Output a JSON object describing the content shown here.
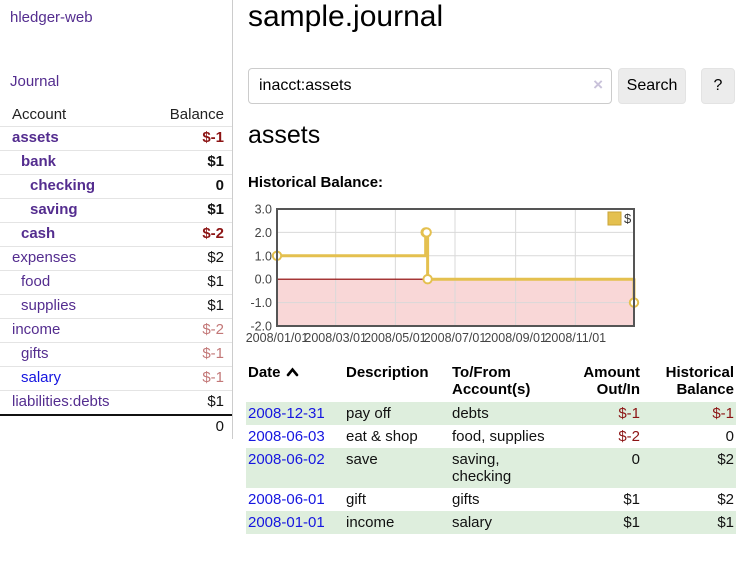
{
  "theme": {
    "purple": "#542d8f",
    "blue": "#1616e0",
    "negative": "#8c1414",
    "negative-faded": "#c37878",
    "row-green": "#deeedd",
    "button-bg": "#ececec"
  },
  "sidebar": {
    "brand": "hledger-web",
    "nav": "Journal",
    "account_header": "Account",
    "balance_header": "Balance",
    "accounts": [
      {
        "name": "assets",
        "depth": 1,
        "bold": true,
        "balance": "$-1",
        "balance_style": "neg",
        "link": "purple"
      },
      {
        "name": "bank",
        "depth": 2,
        "bold": true,
        "balance": "$1",
        "balance_style": "plain",
        "link": "purple"
      },
      {
        "name": "checking",
        "depth": 3,
        "bold": true,
        "balance": "0",
        "balance_style": "plain",
        "link": "purple"
      },
      {
        "name": "saving",
        "depth": 3,
        "bold": true,
        "balance": "$1",
        "balance_style": "plain",
        "link": "purple"
      },
      {
        "name": "cash",
        "depth": 2,
        "bold": true,
        "balance": "$-2",
        "balance_style": "neg",
        "link": "purple"
      },
      {
        "name": "expenses",
        "depth": 1,
        "bold": false,
        "balance": "$2",
        "balance_style": "plain",
        "link": "purple"
      },
      {
        "name": "food",
        "depth": 2,
        "bold": false,
        "balance": "$1",
        "balance_style": "plain",
        "link": "purple"
      },
      {
        "name": "supplies",
        "depth": 2,
        "bold": false,
        "balance": "$1",
        "balance_style": "plain",
        "link": "purple"
      },
      {
        "name": "income",
        "depth": 1,
        "bold": false,
        "balance": "$-2",
        "balance_style": "negfade",
        "link": "purple"
      },
      {
        "name": "gifts",
        "depth": 2,
        "bold": false,
        "balance": "$-1",
        "balance_style": "negfade",
        "link": "purple"
      },
      {
        "name": "salary",
        "depth": 2,
        "bold": false,
        "balance": "$-1",
        "balance_style": "negfade",
        "link": "blue"
      },
      {
        "name": "liabilities:debts",
        "depth": 1,
        "bold": false,
        "balance": "$1",
        "balance_style": "plain",
        "link": "purple"
      }
    ],
    "total": "0"
  },
  "header": {
    "title": "sample.journal"
  },
  "search": {
    "value": "inacct:assets",
    "clear_label": "×",
    "button": "Search",
    "help": "?"
  },
  "account_page": {
    "heading": "assets",
    "chart_title": "Historical Balance:"
  },
  "chart_data": {
    "type": "line",
    "step": true,
    "title": "Historical Balance:",
    "series": [
      {
        "name": "$",
        "color": "#e4c04f",
        "points": [
          [
            "2008-01-01",
            1
          ],
          [
            "2008-06-01",
            2
          ],
          [
            "2008-06-02",
            2
          ],
          [
            "2008-06-03",
            0
          ],
          [
            "2008-12-31",
            -1
          ]
        ]
      }
    ],
    "xlim": [
      "2008-01-01",
      "2008-12-31"
    ],
    "ylim": [
      -2,
      3
    ],
    "yticks": [
      -2,
      -1,
      0,
      1,
      2,
      3
    ],
    "ytick_labels": [
      "-2.0",
      "-1.0",
      "0.0",
      "1.0",
      "2.0",
      "3.0"
    ],
    "xticks": [
      {
        "date": "2008-01-01",
        "label": "2008/01/01"
      },
      {
        "date": "2008-03-01",
        "label": "2008/03/01"
      },
      {
        "date": "2008-05-01",
        "label": "2008/05/01"
      },
      {
        "date": "2008-07-01",
        "label": "2008/07/01"
      },
      {
        "date": "2008-09-01",
        "label": "2008/09/01"
      },
      {
        "date": "2008-11-01",
        "label": "2008/11/01"
      }
    ],
    "grid": true,
    "legend": {
      "label": "$",
      "position": "top-right"
    },
    "zero_line_color": "#8b0000",
    "negative_region_color": "#f9d7d7",
    "frame_color": "#555555",
    "grid_color": "#d9d9d9"
  },
  "register": {
    "headers": [
      "Date",
      "Description",
      "To/From Account(s)",
      "Amount Out/In",
      "Historical Balance"
    ],
    "sort": {
      "column": "Date",
      "direction": "asc"
    },
    "rows": [
      {
        "date": "2008-12-31",
        "description": "pay off",
        "accounts": "debts",
        "amount": "$-1",
        "amount_negative": true,
        "balance": "$-1",
        "balance_negative": true
      },
      {
        "date": "2008-06-03",
        "description": "eat & shop",
        "accounts": "food, supplies",
        "amount": "$-2",
        "amount_negative": true,
        "balance": "0",
        "balance_negative": false
      },
      {
        "date": "2008-06-02",
        "description": "save",
        "accounts": "saving, checking",
        "amount": "0",
        "amount_negative": false,
        "balance": "$2",
        "balance_negative": false
      },
      {
        "date": "2008-06-01",
        "description": "gift",
        "accounts": "gifts",
        "amount": "$1",
        "amount_negative": false,
        "balance": "$2",
        "balance_negative": false
      },
      {
        "date": "2008-01-01",
        "description": "income",
        "accounts": "salary",
        "amount": "$1",
        "amount_negative": false,
        "balance": "$1",
        "balance_negative": false
      }
    ]
  }
}
